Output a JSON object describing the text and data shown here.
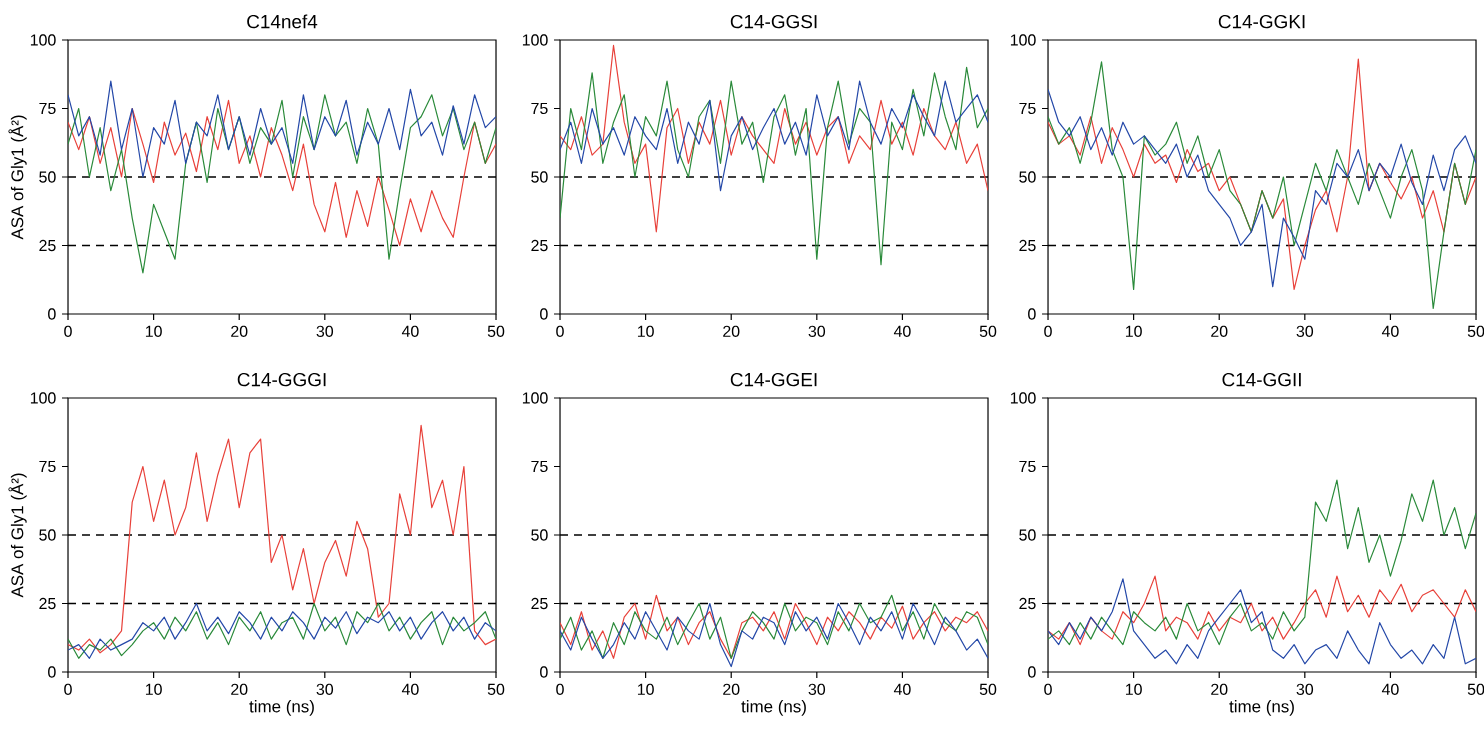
{
  "chart_data": [
    {
      "type": "line",
      "title": "C14nef4",
      "ylabel": "ASA of Gly1 (Å²)",
      "xlim": [
        0,
        50
      ],
      "ylim": [
        0,
        100
      ],
      "xticks": [
        0,
        10,
        20,
        30,
        40,
        50
      ],
      "yticks": [
        0,
        25,
        50,
        75,
        100
      ],
      "ref_lines": [
        {
          "axis": "y",
          "value": 25,
          "color": "#000000",
          "line_style": "dashed"
        },
        {
          "axis": "y",
          "value": 50,
          "color": "#000000",
          "line_style": "dashed"
        }
      ],
      "x": [
        0,
        1.25,
        2.5,
        3.75,
        5,
        6.25,
        7.5,
        8.75,
        10,
        11.25,
        12.5,
        13.75,
        15,
        16.25,
        17.5,
        18.75,
        20,
        21.25,
        22.5,
        23.75,
        25,
        26.25,
        27.5,
        28.75,
        30,
        31.25,
        32.5,
        33.75,
        35,
        36.25,
        37.5,
        38.75,
        40,
        41.25,
        42.5,
        43.75,
        45,
        46.25,
        47.5,
        48.75,
        50
      ],
      "series": [
        {
          "color": "#e8413a",
          "values": [
            70,
            60,
            72,
            55,
            68,
            50,
            75,
            62,
            48,
            70,
            58,
            66,
            52,
            72,
            60,
            78,
            55,
            65,
            50,
            68,
            58,
            45,
            62,
            40,
            30,
            48,
            28,
            45,
            32,
            50,
            38,
            25,
            42,
            30,
            45,
            35,
            28,
            50,
            70,
            55,
            62
          ]
        },
        {
          "color": "#2a8a3a",
          "values": [
            62,
            75,
            50,
            68,
            45,
            60,
            35,
            15,
            40,
            30,
            20,
            55,
            70,
            48,
            75,
            60,
            72,
            55,
            68,
            62,
            78,
            50,
            72,
            60,
            80,
            65,
            70,
            55,
            75,
            62,
            20,
            45,
            68,
            72,
            80,
            65,
            75,
            60,
            70,
            55,
            68
          ]
        },
        {
          "color": "#2448a8",
          "values": [
            80,
            65,
            72,
            58,
            85,
            60,
            75,
            50,
            68,
            62,
            78,
            55,
            70,
            65,
            80,
            60,
            72,
            58,
            75,
            62,
            68,
            55,
            80,
            60,
            72,
            65,
            78,
            58,
            70,
            62,
            75,
            60,
            82,
            65,
            70,
            58,
            76,
            62,
            80,
            68,
            72
          ]
        }
      ]
    },
    {
      "type": "line",
      "title": "C14-GGSI",
      "xlim": [
        0,
        50
      ],
      "ylim": [
        0,
        100
      ],
      "xticks": [
        0,
        10,
        20,
        30,
        40,
        50
      ],
      "yticks": [
        0,
        25,
        50,
        75,
        100
      ],
      "ref_lines": [
        {
          "axis": "y",
          "value": 25,
          "color": "#000000",
          "line_style": "dashed"
        },
        {
          "axis": "y",
          "value": 50,
          "color": "#000000",
          "line_style": "dashed"
        }
      ],
      "x": [
        0,
        1.25,
        2.5,
        3.75,
        5,
        6.25,
        7.5,
        8.75,
        10,
        11.25,
        12.5,
        13.75,
        15,
        16.25,
        17.5,
        18.75,
        20,
        21.25,
        22.5,
        23.75,
        25,
        26.25,
        27.5,
        28.75,
        30,
        31.25,
        32.5,
        33.75,
        35,
        36.25,
        37.5,
        38.75,
        40,
        41.25,
        42.5,
        43.75,
        45,
        46.25,
        47.5,
        48.75,
        50
      ],
      "series": [
        {
          "color": "#e8413a",
          "values": [
            65,
            60,
            72,
            58,
            62,
            98,
            70,
            55,
            62,
            30,
            68,
            75,
            55,
            70,
            62,
            78,
            58,
            72,
            65,
            60,
            55,
            75,
            62,
            70,
            58,
            68,
            72,
            55,
            65,
            60,
            78,
            62,
            70,
            58,
            75,
            65,
            60,
            70,
            55,
            62,
            45
          ]
        },
        {
          "color": "#2a8a3a",
          "values": [
            35,
            75,
            60,
            88,
            55,
            70,
            80,
            50,
            72,
            65,
            85,
            60,
            50,
            72,
            78,
            55,
            85,
            62,
            70,
            48,
            72,
            80,
            58,
            75,
            20,
            68,
            85,
            62,
            75,
            70,
            18,
            70,
            60,
            82,
            65,
            88,
            72,
            60,
            90,
            68,
            75
          ]
        },
        {
          "color": "#2448a8",
          "values": [
            60,
            70,
            55,
            75,
            62,
            68,
            58,
            72,
            65,
            60,
            75,
            55,
            70,
            62,
            78,
            45,
            65,
            72,
            60,
            68,
            75,
            62,
            70,
            58,
            80,
            65,
            72,
            60,
            85,
            70,
            62,
            75,
            68,
            80,
            72,
            65,
            85,
            70,
            75,
            80,
            70
          ]
        }
      ]
    },
    {
      "type": "line",
      "title": "C14-GGKI",
      "xlim": [
        0,
        50
      ],
      "ylim": [
        0,
        100
      ],
      "xticks": [
        0,
        10,
        20,
        30,
        40,
        50
      ],
      "yticks": [
        0,
        25,
        50,
        75,
        100
      ],
      "ref_lines": [
        {
          "axis": "y",
          "value": 25,
          "color": "#000000",
          "line_style": "dashed"
        },
        {
          "axis": "y",
          "value": 50,
          "color": "#000000",
          "line_style": "dashed"
        }
      ],
      "x": [
        0,
        1.25,
        2.5,
        3.75,
        5,
        6.25,
        7.5,
        8.75,
        10,
        11.25,
        12.5,
        13.75,
        15,
        16.25,
        17.5,
        18.75,
        20,
        21.25,
        22.5,
        23.75,
        25,
        26.25,
        27.5,
        28.75,
        30,
        31.25,
        32.5,
        33.75,
        35,
        36.25,
        37.5,
        38.75,
        40,
        41.25,
        42.5,
        43.75,
        45,
        46.25,
        47.5,
        48.75,
        50
      ],
      "series": [
        {
          "color": "#e8413a",
          "values": [
            70,
            62,
            65,
            58,
            72,
            55,
            68,
            60,
            50,
            62,
            55,
            58,
            48,
            60,
            52,
            55,
            45,
            50,
            40,
            30,
            45,
            35,
            42,
            9,
            25,
            38,
            45,
            30,
            50,
            93,
            45,
            55,
            48,
            42,
            50,
            35,
            45,
            30,
            55,
            40,
            50
          ]
        },
        {
          "color": "#2a8a3a",
          "values": [
            72,
            62,
            68,
            55,
            70,
            92,
            60,
            50,
            9,
            65,
            58,
            62,
            70,
            55,
            65,
            50,
            60,
            45,
            40,
            30,
            45,
            35,
            50,
            25,
            40,
            55,
            45,
            60,
            50,
            40,
            55,
            45,
            35,
            50,
            60,
            45,
            2,
            30,
            55,
            40,
            60
          ]
        },
        {
          "color": "#2448a8",
          "values": [
            82,
            70,
            65,
            72,
            60,
            68,
            58,
            70,
            62,
            65,
            60,
            55,
            62,
            50,
            58,
            45,
            40,
            35,
            25,
            30,
            40,
            10,
            35,
            28,
            20,
            45,
            40,
            55,
            50,
            60,
            45,
            55,
            50,
            62,
            48,
            40,
            58,
            45,
            60,
            65,
            55
          ]
        }
      ]
    },
    {
      "type": "line",
      "title": "C14-GGGI",
      "xlabel": "time (ns)",
      "ylabel": "ASA of Gly1 (Å²)",
      "xlim": [
        0,
        50
      ],
      "ylim": [
        0,
        100
      ],
      "xticks": [
        0,
        10,
        20,
        30,
        40,
        50
      ],
      "yticks": [
        0,
        25,
        50,
        75,
        100
      ],
      "ref_lines": [
        {
          "axis": "y",
          "value": 25,
          "color": "#000000",
          "line_style": "dashed"
        },
        {
          "axis": "y",
          "value": 50,
          "color": "#000000",
          "line_style": "dashed"
        }
      ],
      "x": [
        0,
        1.25,
        2.5,
        3.75,
        5,
        6.25,
        7.5,
        8.75,
        10,
        11.25,
        12.5,
        13.75,
        15,
        16.25,
        17.5,
        18.75,
        20,
        21.25,
        22.5,
        23.75,
        25,
        26.25,
        27.5,
        28.75,
        30,
        31.25,
        32.5,
        33.75,
        35,
        36.25,
        37.5,
        38.75,
        40,
        41.25,
        42.5,
        43.75,
        45,
        46.25,
        47.5,
        48.75,
        50
      ],
      "series": [
        {
          "color": "#e8413a",
          "values": [
            10,
            8,
            12,
            7,
            10,
            15,
            62,
            75,
            55,
            70,
            50,
            60,
            80,
            55,
            72,
            85,
            60,
            80,
            85,
            40,
            50,
            30,
            45,
            25,
            40,
            48,
            35,
            55,
            45,
            20,
            25,
            65,
            50,
            90,
            60,
            70,
            50,
            75,
            15,
            10,
            12
          ]
        },
        {
          "color": "#2a8a3a",
          "values": [
            12,
            5,
            10,
            8,
            12,
            6,
            10,
            15,
            18,
            12,
            20,
            15,
            22,
            12,
            18,
            10,
            20,
            15,
            22,
            12,
            18,
            20,
            12,
            25,
            15,
            20,
            10,
            22,
            18,
            25,
            15,
            20,
            12,
            18,
            22,
            10,
            20,
            15,
            18,
            22,
            12
          ]
        },
        {
          "color": "#2448a8",
          "values": [
            8,
            10,
            5,
            12,
            8,
            10,
            12,
            18,
            15,
            20,
            12,
            18,
            25,
            15,
            20,
            14,
            22,
            18,
            12,
            20,
            15,
            22,
            18,
            12,
            20,
            16,
            22,
            14,
            20,
            18,
            22,
            15,
            20,
            12,
            18,
            22,
            15,
            20,
            12,
            18,
            15
          ]
        }
      ]
    },
    {
      "type": "line",
      "title": "C14-GGEI",
      "xlabel": "time (ns)",
      "xlim": [
        0,
        50
      ],
      "ylim": [
        0,
        100
      ],
      "xticks": [
        0,
        10,
        20,
        30,
        40,
        50
      ],
      "yticks": [
        0,
        25,
        50,
        75,
        100
      ],
      "ref_lines": [
        {
          "axis": "y",
          "value": 25,
          "color": "#000000",
          "line_style": "dashed"
        },
        {
          "axis": "y",
          "value": 50,
          "color": "#000000",
          "line_style": "dashed"
        }
      ],
      "x": [
        0,
        1.25,
        2.5,
        3.75,
        5,
        6.25,
        7.5,
        8.75,
        10,
        11.25,
        12.5,
        13.75,
        15,
        16.25,
        17.5,
        18.75,
        20,
        21.25,
        22.5,
        23.75,
        25,
        26.25,
        27.5,
        28.75,
        30,
        31.25,
        32.5,
        33.75,
        35,
        36.25,
        37.5,
        38.75,
        40,
        41.25,
        42.5,
        43.75,
        45,
        46.25,
        47.5,
        48.75,
        50
      ],
      "series": [
        {
          "color": "#e8413a",
          "values": [
            18,
            10,
            22,
            8,
            15,
            5,
            20,
            25,
            12,
            28,
            15,
            20,
            10,
            18,
            22,
            12,
            5,
            18,
            20,
            15,
            22,
            12,
            25,
            18,
            10,
            20,
            15,
            22,
            18,
            12,
            20,
            16,
            24,
            12,
            18,
            22,
            15,
            20,
            18,
            22,
            15
          ]
        },
        {
          "color": "#2a8a3a",
          "values": [
            12,
            20,
            8,
            15,
            5,
            18,
            10,
            22,
            15,
            12,
            20,
            10,
            18,
            25,
            12,
            20,
            5,
            15,
            22,
            18,
            12,
            25,
            15,
            20,
            18,
            10,
            22,
            15,
            25,
            18,
            20,
            28,
            15,
            22,
            12,
            25,
            18,
            15,
            22,
            20,
            10
          ]
        },
        {
          "color": "#2448a8",
          "values": [
            15,
            8,
            20,
            12,
            5,
            10,
            18,
            12,
            22,
            15,
            8,
            20,
            15,
            12,
            25,
            10,
            2,
            15,
            12,
            20,
            18,
            10,
            22,
            15,
            20,
            12,
            25,
            18,
            10,
            20,
            15,
            22,
            12,
            25,
            18,
            10,
            20,
            15,
            8,
            12,
            5
          ]
        }
      ]
    },
    {
      "type": "line",
      "title": "C14-GGII",
      "xlabel": "time (ns)",
      "xlim": [
        0,
        50
      ],
      "ylim": [
        0,
        100
      ],
      "xticks": [
        0,
        10,
        20,
        30,
        40,
        50
      ],
      "yticks": [
        0,
        25,
        50,
        75,
        100
      ],
      "ref_lines": [
        {
          "axis": "y",
          "value": 25,
          "color": "#000000",
          "line_style": "dashed"
        },
        {
          "axis": "y",
          "value": 50,
          "color": "#000000",
          "line_style": "dashed"
        }
      ],
      "x": [
        0,
        1.25,
        2.5,
        3.75,
        5,
        6.25,
        7.5,
        8.75,
        10,
        11.25,
        12.5,
        13.75,
        15,
        16.25,
        17.5,
        18.75,
        20,
        21.25,
        22.5,
        23.75,
        25,
        26.25,
        27.5,
        28.75,
        30,
        31.25,
        32.5,
        33.75,
        35,
        36.25,
        37.5,
        38.75,
        40,
        41.25,
        42.5,
        43.75,
        45,
        46.25,
        47.5,
        48.75,
        50
      ],
      "series": [
        {
          "color": "#e8413a",
          "values": [
            15,
            12,
            18,
            10,
            20,
            15,
            12,
            22,
            18,
            25,
            35,
            15,
            20,
            18,
            12,
            22,
            15,
            20,
            18,
            25,
            15,
            20,
            12,
            18,
            25,
            30,
            20,
            35,
            22,
            28,
            20,
            30,
            25,
            32,
            22,
            28,
            30,
            25,
            20,
            30,
            22
          ]
        },
        {
          "color": "#2a8a3a",
          "values": [
            12,
            15,
            10,
            18,
            12,
            20,
            15,
            10,
            22,
            18,
            15,
            20,
            12,
            25,
            15,
            18,
            10,
            20,
            25,
            15,
            18,
            12,
            22,
            15,
            20,
            62,
            55,
            70,
            45,
            60,
            40,
            50,
            35,
            48,
            65,
            55,
            70,
            50,
            60,
            45,
            58
          ]
        },
        {
          "color": "#2448a8",
          "values": [
            15,
            10,
            18,
            12,
            20,
            15,
            22,
            34,
            15,
            10,
            5,
            8,
            3,
            10,
            5,
            15,
            20,
            25,
            30,
            18,
            22,
            8,
            5,
            10,
            3,
            8,
            10,
            5,
            15,
            8,
            3,
            18,
            10,
            5,
            8,
            3,
            10,
            5,
            20,
            3,
            5
          ]
        }
      ]
    }
  ]
}
